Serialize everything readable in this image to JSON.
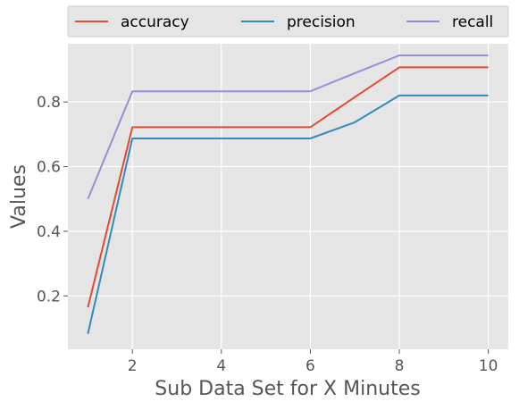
{
  "chart_data": {
    "type": "line",
    "xlabel": "Sub Data Set for X Minutes",
    "ylabel": "Values",
    "xlim": [
      0.55,
      10.45
    ],
    "ylim": [
      0.035,
      0.98
    ],
    "xticks": [
      2,
      4,
      6,
      8,
      10
    ],
    "yticks": [
      0.2,
      0.4,
      0.6,
      0.8
    ],
    "grid": true,
    "legend_position": "top",
    "x": [
      1,
      2,
      3,
      4,
      5,
      6,
      7,
      8,
      9,
      10
    ],
    "series": [
      {
        "name": "accuracy",
        "color": "#E24A33",
        "values": [
          0.165,
          0.722,
          0.722,
          0.722,
          0.722,
          0.722,
          0.815,
          0.907,
          0.907,
          0.907
        ]
      },
      {
        "name": "precision",
        "color": "#348ABD",
        "values": [
          0.083,
          0.687,
          0.687,
          0.687,
          0.687,
          0.687,
          0.737,
          0.82,
          0.82,
          0.82
        ]
      },
      {
        "name": "recall",
        "color": "#988ED5",
        "values": [
          0.5,
          0.833,
          0.833,
          0.833,
          0.833,
          0.833,
          0.889,
          0.944,
          0.944,
          0.944
        ]
      }
    ]
  }
}
